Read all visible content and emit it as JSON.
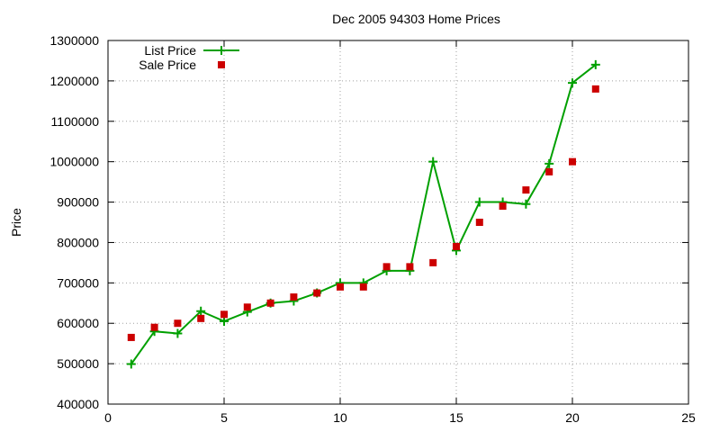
{
  "chart_data": {
    "type": "line",
    "title": "Dec 2005 94303 Home Prices",
    "xlabel": "",
    "ylabel": "Price",
    "xlim": [
      0,
      25
    ],
    "ylim": [
      400000,
      1300000
    ],
    "x_ticks": [
      0,
      5,
      10,
      15,
      20,
      25
    ],
    "y_ticks": [
      400000,
      500000,
      600000,
      700000,
      800000,
      900000,
      1000000,
      1100000,
      1200000,
      1300000
    ],
    "grid": true,
    "legend_position": "top-left",
    "series": [
      {
        "name": "List Price",
        "style": "line+cross",
        "color": "#00a000",
        "x": [
          1,
          2,
          3,
          4,
          5,
          6,
          7,
          8,
          9,
          10,
          11,
          12,
          13,
          14,
          15,
          16,
          17,
          18,
          19,
          20,
          21
        ],
        "y": [
          499000,
          580000,
          575000,
          630000,
          605000,
          628000,
          650000,
          655000,
          675000,
          700000,
          700000,
          730000,
          730000,
          1000000,
          780000,
          900000,
          900000,
          895000,
          995000,
          1195000,
          1240000
        ]
      },
      {
        "name": "Sale Price",
        "style": "square-marker",
        "color": "#cc0000",
        "x": [
          1,
          2,
          3,
          4,
          5,
          6,
          7,
          8,
          9,
          10,
          11,
          12,
          13,
          14,
          15,
          16,
          17,
          18,
          19,
          20,
          21
        ],
        "y": [
          565000,
          590000,
          600000,
          612000,
          622000,
          640000,
          650000,
          665000,
          675000,
          690000,
          690000,
          740000,
          740000,
          750000,
          790000,
          850000,
          890000,
          930000,
          975000,
          1000000,
          1180000
        ]
      }
    ]
  }
}
